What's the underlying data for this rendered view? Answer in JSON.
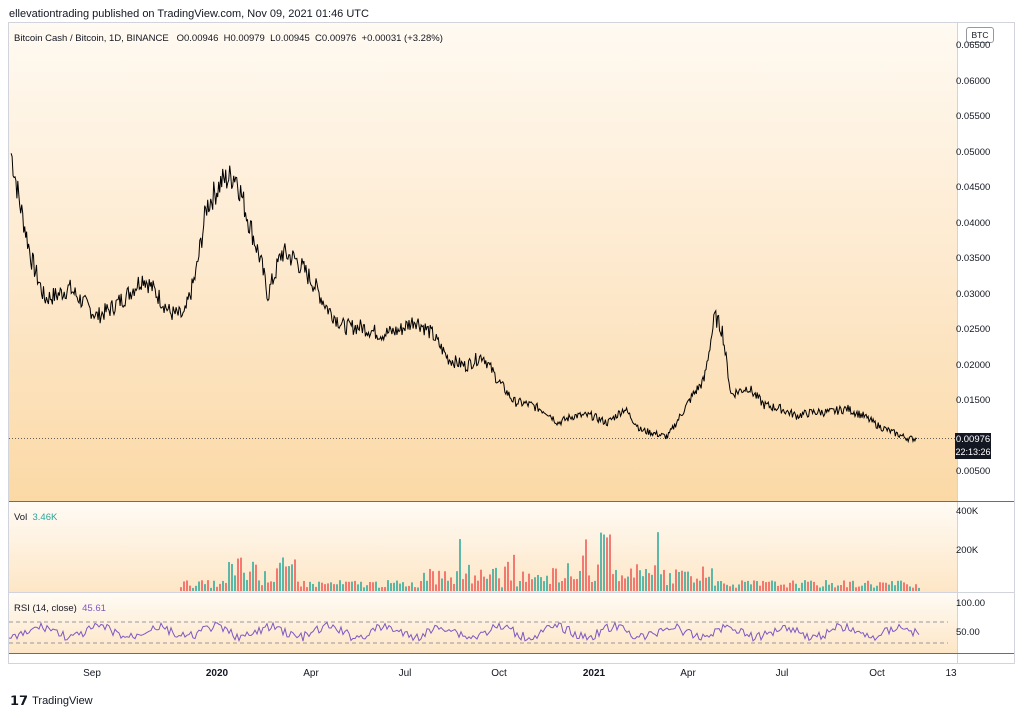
{
  "header": {
    "publish_line": "ellevationtrading published on TradingView.com, Nov 09, 2021 01:46 UTC"
  },
  "legend": {
    "symbol": "Bitcoin Cash / Bitcoin, 1D, BINANCE",
    "open": "O0.00946",
    "high": "H0.00979",
    "low": "L0.00945",
    "close": "C0.00976",
    "change": "+0.00031 (+3.28%)"
  },
  "volume_legend": {
    "label": "Vol",
    "value": "3.46K"
  },
  "rsi_legend": {
    "label": "RSI (14, close)",
    "value": "45.61"
  },
  "price_scale": {
    "currency": "BTC",
    "ticks": [
      "0.06500",
      "0.06000",
      "0.05500",
      "0.05000",
      "0.04500",
      "0.04000",
      "0.03500",
      "0.03000",
      "0.02500",
      "0.02000",
      "0.01500",
      "0.00500"
    ],
    "current_price": "0.00976",
    "countdown": "22:13:26"
  },
  "volume_scale": {
    "ticks": [
      "400K",
      "200K"
    ]
  },
  "rsi_scale": {
    "ticks": [
      "100.00",
      "50.00"
    ]
  },
  "time_axis": {
    "labels": [
      {
        "text": "Sep",
        "bold": false
      },
      {
        "text": "2020",
        "bold": true
      },
      {
        "text": "Apr",
        "bold": false
      },
      {
        "text": "Jul",
        "bold": false
      },
      {
        "text": "Oct",
        "bold": false
      },
      {
        "text": "2021",
        "bold": true
      },
      {
        "text": "Apr",
        "bold": false
      },
      {
        "text": "Jul",
        "bold": false
      },
      {
        "text": "Oct",
        "bold": false
      },
      {
        "text": "13",
        "bold": false
      }
    ]
  },
  "footer": {
    "brand": "TradingView"
  },
  "colors": {
    "line": "#000000",
    "rsi": "#7e57c2",
    "vol_up": "#26a69a",
    "vol_down": "#ef5350",
    "bg_top": "#fffaf2",
    "bg_bottom": "#fbd9a6"
  },
  "chart_data": {
    "type": "line",
    "title": "Bitcoin Cash / Bitcoin, 1D, BINANCE",
    "xlabel": "",
    "ylabel": "BTC",
    "ylim": [
      0.003,
      0.066
    ],
    "series": [
      {
        "name": "Bitcoin Cash / Bitcoin",
        "x": [
          "2019-07-20",
          "2019-07-28",
          "2019-08-08",
          "2019-08-20",
          "2019-09-01",
          "2019-09-12",
          "2019-09-25",
          "2019-10-08",
          "2019-10-20",
          "2019-11-05",
          "2019-11-20",
          "2019-12-01",
          "2019-12-15",
          "2019-12-28",
          "2020-01-08",
          "2020-01-18",
          "2020-02-01",
          "2020-02-14",
          "2020-02-25",
          "2020-03-08",
          "2020-03-15",
          "2020-03-28",
          "2020-04-10",
          "2020-04-25",
          "2020-05-10",
          "2020-05-25",
          "2020-06-10",
          "2020-06-28",
          "2020-07-15",
          "2020-07-30",
          "2020-08-15",
          "2020-08-30",
          "2020-09-15",
          "2020-10-01",
          "2020-10-15",
          "2020-10-30",
          "2020-11-15",
          "2020-11-30",
          "2020-12-10",
          "2020-12-25",
          "2021-01-10",
          "2021-01-25",
          "2021-02-10",
          "2021-02-25",
          "2021-03-10",
          "2021-03-22",
          "2021-04-05",
          "2021-04-15",
          "2021-04-25",
          "2021-05-05",
          "2021-05-12",
          "2021-05-20",
          "2021-06-05",
          "2021-06-20",
          "2021-07-05",
          "2021-07-20",
          "2021-08-05",
          "2021-08-20",
          "2021-09-05",
          "2021-09-20",
          "2021-10-05",
          "2021-10-20",
          "2021-11-01",
          "2021-11-09"
        ],
        "values": [
          0.05,
          0.043,
          0.035,
          0.0295,
          0.03,
          0.031,
          0.029,
          0.027,
          0.028,
          0.03,
          0.0325,
          0.0305,
          0.0275,
          0.027,
          0.033,
          0.0425,
          0.046,
          0.047,
          0.041,
          0.035,
          0.03,
          0.036,
          0.035,
          0.032,
          0.028,
          0.0255,
          0.0255,
          0.0245,
          0.025,
          0.0265,
          0.0245,
          0.021,
          0.02,
          0.0215,
          0.018,
          0.015,
          0.0145,
          0.0135,
          0.012,
          0.013,
          0.013,
          0.012,
          0.014,
          0.011,
          0.0105,
          0.01,
          0.0135,
          0.016,
          0.018,
          0.027,
          0.025,
          0.016,
          0.017,
          0.0145,
          0.014,
          0.013,
          0.0135,
          0.0135,
          0.014,
          0.013,
          0.0115,
          0.0105,
          0.0098,
          0.00976
        ]
      }
    ]
  }
}
